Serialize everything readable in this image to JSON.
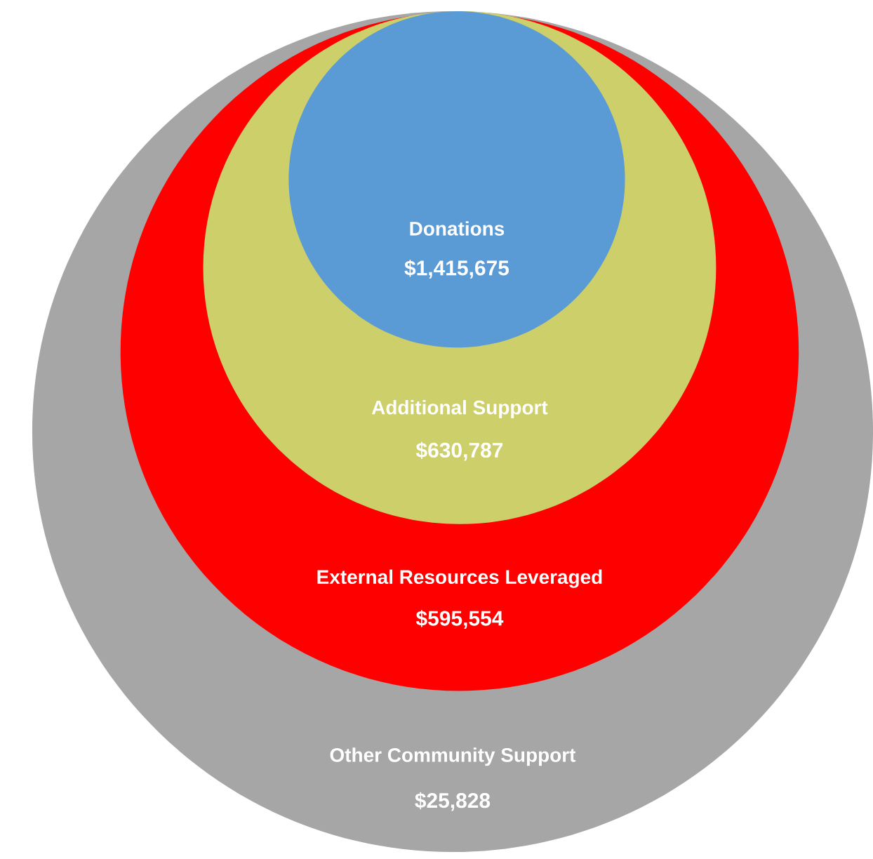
{
  "chart_data": {
    "type": "other",
    "categories": [
      "Donations",
      "Additional Support",
      "External Resources Leveraged",
      "Other Community Support"
    ],
    "values": [
      1415675,
      630787,
      595554,
      25828
    ],
    "value_labels": [
      "$1,415,675",
      "$630,787",
      "$595,554",
      "$25,828"
    ],
    "colors": [
      "#5b9bd5",
      "#cdcf6a",
      "#ff0000",
      "#a6a6a6"
    ]
  }
}
